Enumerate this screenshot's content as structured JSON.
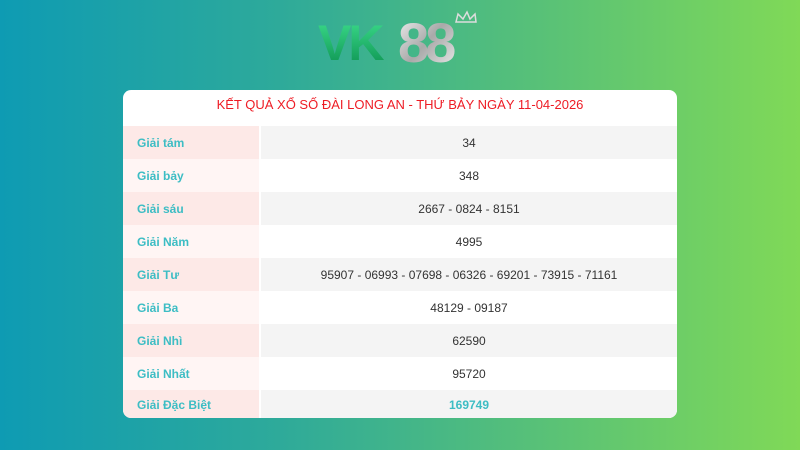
{
  "logo": {
    "text": "VK88",
    "colors": {
      "vk": "#18b86a",
      "eights": "#d0d0d0"
    }
  },
  "table": {
    "title": "KẾT QUẢ XỔ SỐ ĐÀI LONG AN - THỨ BẢY NGÀY 11-04-2026",
    "rows": [
      {
        "label": "Giải tám",
        "value": "34"
      },
      {
        "label": "Giải bảy",
        "value": "348"
      },
      {
        "label": "Giải sáu",
        "value": "2667 - 0824 - 8151"
      },
      {
        "label": "Giải Năm",
        "value": "4995"
      },
      {
        "label": "Giải Tư",
        "value": "95907 - 06993 - 07698 - 06326 - 69201 - 73915 - 71161"
      },
      {
        "label": "Giải Ba",
        "value": "48129 - 09187"
      },
      {
        "label": "Giải Nhì",
        "value": "62590"
      },
      {
        "label": "Giải Nhất",
        "value": "95720"
      },
      {
        "label": "Giải Đặc Biệt",
        "value": "169749"
      }
    ]
  },
  "colors": {
    "title": "#ee1c25",
    "label": "#3dbdc4",
    "special": "#3dbdc4"
  }
}
